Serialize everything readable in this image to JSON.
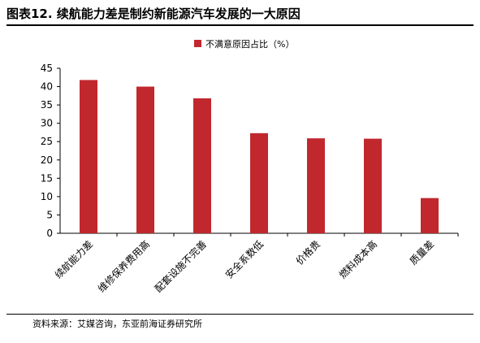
{
  "header": {
    "title": "图表12. 续航能力差是制约新能源汽车发展的一大原因"
  },
  "footer": {
    "source": "资料来源：艾媒咨询，东亚前海证券研究所"
  },
  "colors": {
    "bar": "#C0282E",
    "axis": "#000000"
  },
  "chart_data": {
    "type": "bar",
    "categories": [
      "续航能力差",
      "维修保养费用高",
      "配套设施不完善",
      "安全系数低",
      "价格贵",
      "燃料成本高",
      "质量差"
    ],
    "series": [
      {
        "name": "不满意原因占比（%）",
        "values": [
          41.8,
          40.0,
          36.8,
          27.3,
          25.9,
          25.8,
          9.6
        ]
      }
    ],
    "ylim": [
      0,
      45
    ],
    "yticks": [
      0,
      5,
      10,
      15,
      20,
      25,
      30,
      35,
      40,
      45
    ],
    "grid": false,
    "legend": "top-right"
  }
}
